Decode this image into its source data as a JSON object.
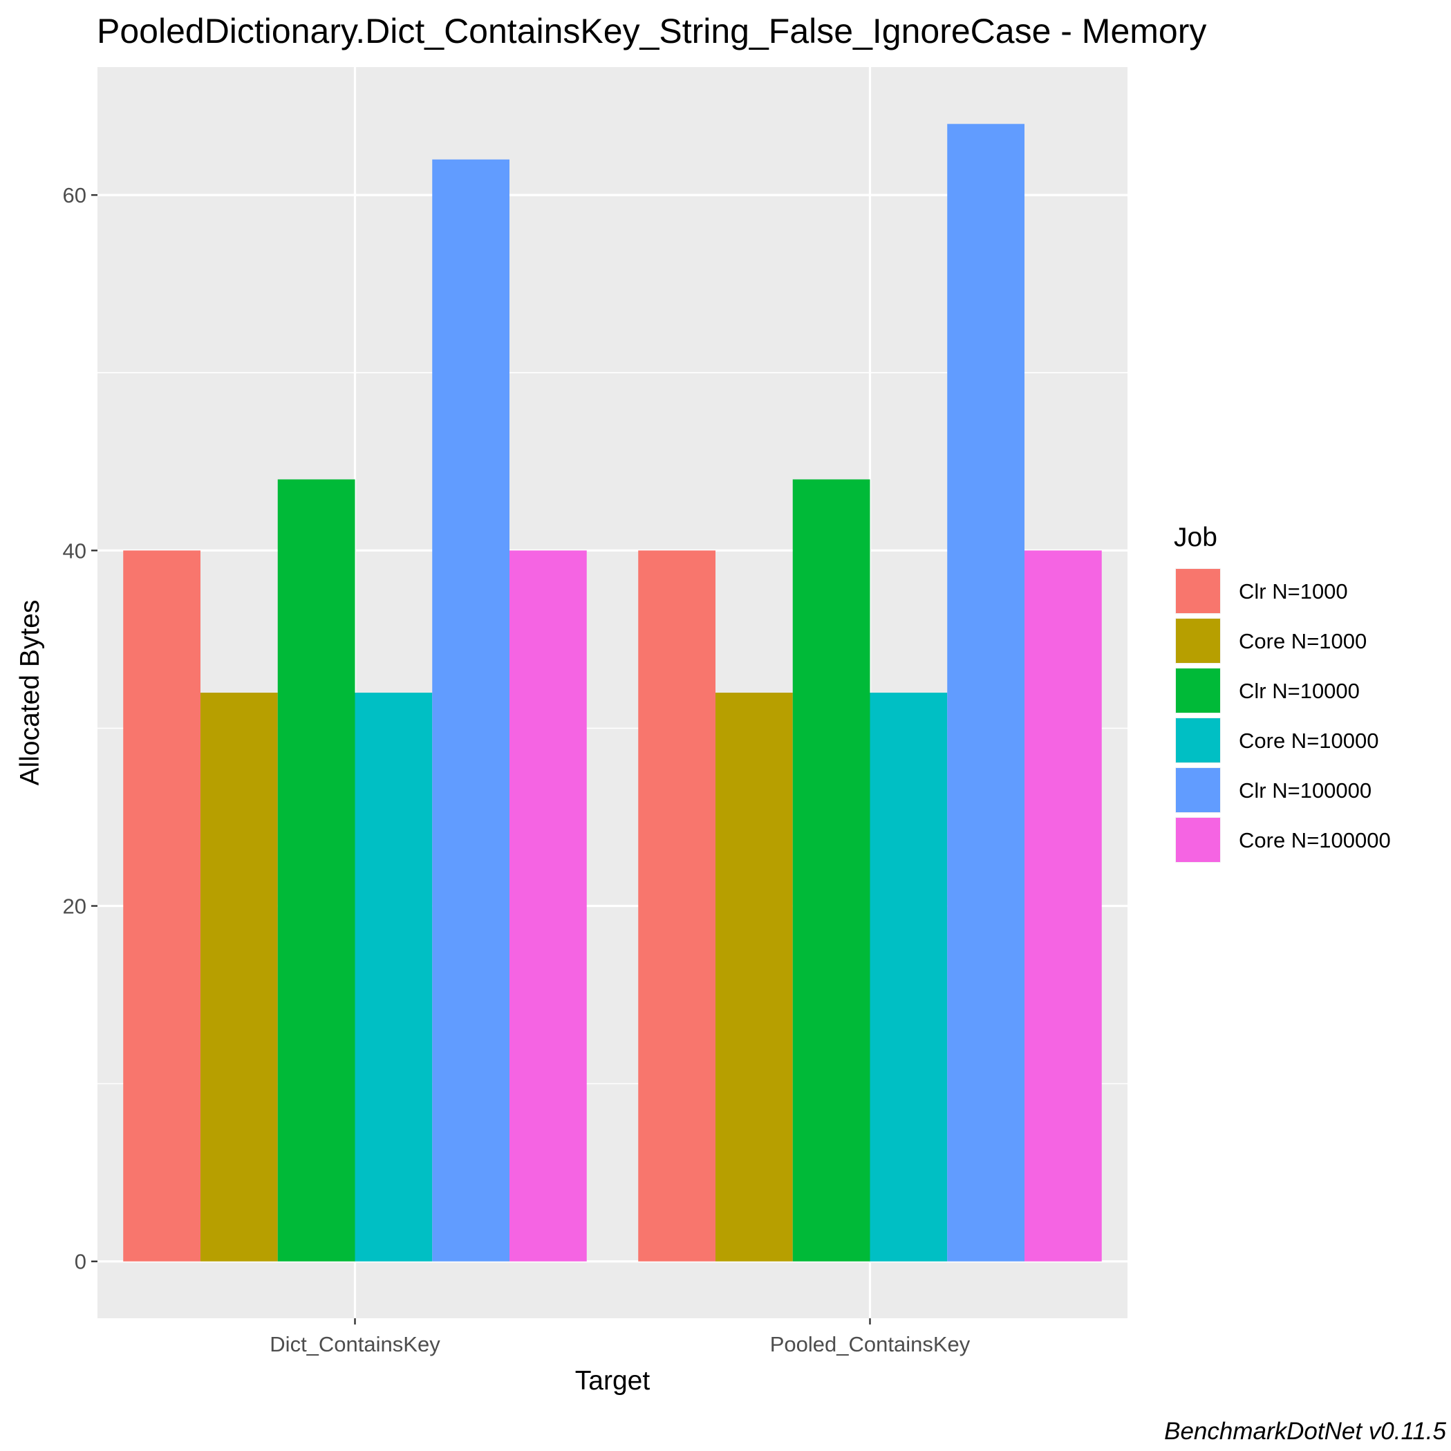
{
  "chart_data": {
    "type": "bar",
    "title": "PooledDictionary.Dict_ContainsKey_String_False_IgnoreCase - Memory",
    "xlabel": "Target",
    "ylabel": "Allocated  Bytes",
    "categories": [
      "Dict_ContainsKey",
      "Pooled_ContainsKey"
    ],
    "series": [
      {
        "name": "Clr N=1000",
        "color": "#F8766D",
        "values": [
          40,
          40
        ]
      },
      {
        "name": "Core N=1000",
        "color": "#B79F00",
        "values": [
          32,
          32
        ]
      },
      {
        "name": "Clr N=10000",
        "color": "#00BA38",
        "values": [
          44,
          44
        ]
      },
      {
        "name": "Core N=10000",
        "color": "#00BFC4",
        "values": [
          32,
          32
        ]
      },
      {
        "name": "Clr N=100000",
        "color": "#619CFF",
        "values": [
          62,
          64
        ]
      },
      {
        "name": "Core N=100000",
        "color": "#F564E3",
        "values": [
          40,
          40
        ]
      }
    ],
    "ylim": [
      -3.2,
      67.2
    ],
    "yticks": [
      0,
      20,
      40,
      60
    ],
    "grid": true,
    "legend": {
      "title": "Job",
      "position": "right"
    },
    "caption": "BenchmarkDotNet v0.11.5"
  }
}
